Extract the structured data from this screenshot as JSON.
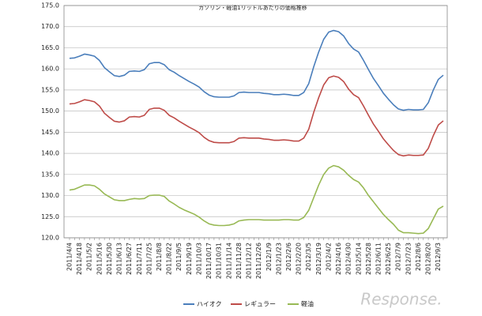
{
  "chart_data": {
    "type": "line",
    "title": "ガソリン・軽油1リットルあたりの価格推移",
    "categories": [
      "2011/4/4",
      null,
      "2011/4/18",
      null,
      "2011/5/2",
      null,
      "2011/5/16",
      null,
      "2011/5/30",
      null,
      "2011/6/13",
      null,
      "2011/6/27",
      null,
      "2011/7/11",
      null,
      "2011/7/25",
      null,
      "2011/8/8",
      null,
      "2011/8/22",
      null,
      "2011/9/5",
      null,
      "2011/9/19",
      null,
      "2011/10/3",
      null,
      "2011/10/17",
      null,
      "2011/10/31",
      null,
      "2011/11/14",
      null,
      "2011/11/28",
      null,
      "2011/12/12",
      null,
      "2011/12/26",
      null,
      "2012/1/9",
      null,
      "2012/1/23",
      null,
      "2012/2/6",
      null,
      "2012/2/20",
      null,
      "2012/3/5",
      null,
      "2012/3/19",
      null,
      "2012/4/2",
      null,
      "2012/4/16",
      null,
      "2012/4/30",
      null,
      "2012/5/14",
      null,
      "2012/5/28",
      null,
      "2012/6/11",
      null,
      "2012/6/25",
      null,
      "2012/7/9",
      null,
      "2012/7/23",
      null,
      "2012/8/6",
      null,
      "2012/8/20",
      null,
      "2012/9/3",
      null
    ],
    "series": [
      {
        "name": "ハイオク",
        "color": "#4a7ebb",
        "values": [
          162.5,
          162.6,
          163.0,
          163.5,
          163.3,
          163.0,
          162.0,
          160.3,
          159.3,
          158.4,
          158.2,
          158.5,
          159.4,
          159.5,
          159.4,
          159.8,
          161.2,
          161.5,
          161.5,
          161.0,
          159.8,
          159.2,
          158.4,
          157.7,
          157.0,
          156.4,
          155.7,
          154.6,
          153.8,
          153.4,
          153.3,
          153.3,
          153.3,
          153.6,
          154.4,
          154.5,
          154.4,
          154.4,
          154.4,
          154.2,
          154.1,
          153.9,
          153.9,
          154.0,
          153.9,
          153.7,
          153.7,
          154.4,
          156.5,
          160.5,
          164.0,
          167.0,
          168.7,
          169.1,
          168.8,
          167.8,
          166.0,
          164.7,
          164.0,
          162.0,
          159.8,
          157.7,
          156.0,
          154.2,
          152.8,
          151.5,
          150.5,
          150.2,
          150.4,
          150.3,
          150.3,
          150.4,
          152.0,
          155.0,
          157.5,
          158.5
        ]
      },
      {
        "name": "レギュラー",
        "color": "#be4b48",
        "values": [
          151.7,
          151.8,
          152.2,
          152.7,
          152.5,
          152.2,
          151.2,
          149.5,
          148.5,
          147.6,
          147.4,
          147.7,
          148.6,
          148.7,
          148.6,
          149.0,
          150.4,
          150.7,
          150.7,
          150.2,
          149.0,
          148.4,
          147.6,
          146.9,
          146.2,
          145.6,
          144.9,
          143.8,
          143.0,
          142.6,
          142.5,
          142.5,
          142.5,
          142.8,
          143.6,
          143.7,
          143.6,
          143.6,
          143.6,
          143.4,
          143.3,
          143.1,
          143.1,
          143.2,
          143.1,
          142.9,
          142.9,
          143.6,
          145.7,
          149.7,
          153.2,
          156.2,
          157.9,
          158.3,
          158.0,
          157.0,
          155.2,
          153.9,
          153.2,
          151.2,
          149.0,
          146.9,
          145.2,
          143.4,
          142.0,
          140.7,
          139.7,
          139.4,
          139.6,
          139.5,
          139.5,
          139.6,
          141.2,
          144.2,
          146.7,
          147.7
        ]
      },
      {
        "name": "軽油",
        "color": "#98b954",
        "values": [
          131.3,
          131.5,
          132,
          132.5,
          132.5,
          132.3,
          131.5,
          130.4,
          129.7,
          129.0,
          128.8,
          128.8,
          129.1,
          129.3,
          129.2,
          129.3,
          130.0,
          130.1,
          130.1,
          129.8,
          128.7,
          128.0,
          127.2,
          126.6,
          126.1,
          125.6,
          124.9,
          124.0,
          123.3,
          123.0,
          122.9,
          122.9,
          123.0,
          123.3,
          124.0,
          124.2,
          124.3,
          124.3,
          124.3,
          124.2,
          124.2,
          124.2,
          124.2,
          124.3,
          124.3,
          124.2,
          124.2,
          124.8,
          126.5,
          129.5,
          132.5,
          135.0,
          136.5,
          137.1,
          136.8,
          136.0,
          134.8,
          133.8,
          133.2,
          131.8,
          130.0,
          128.5,
          127.0,
          125.5,
          124.3,
          123.2,
          121.8,
          121.2,
          121.2,
          121.1,
          121.0,
          121.1,
          122.2,
          124.5,
          126.8,
          127.5
        ]
      }
    ],
    "ylim": [
      120,
      175
    ],
    "yticks": [
      {
        "value": 120,
        "label": "120.0"
      },
      {
        "value": 125,
        "label": "125.0"
      },
      {
        "value": 130,
        "label": "130.0"
      },
      {
        "value": 135,
        "label": "135.0"
      },
      {
        "value": 140,
        "label": "140.0"
      },
      {
        "value": 145,
        "label": "145.0"
      },
      {
        "value": 150,
        "label": "150.0"
      },
      {
        "value": 155,
        "label": "155.0"
      },
      {
        "value": 160,
        "label": "160.0"
      },
      {
        "value": 165,
        "label": "165.0"
      },
      {
        "value": 170,
        "label": "170.0"
      },
      {
        "value": 175,
        "label": "175.0"
      }
    ],
    "grid": true,
    "legend": "bottom",
    "watermark": "Response."
  }
}
